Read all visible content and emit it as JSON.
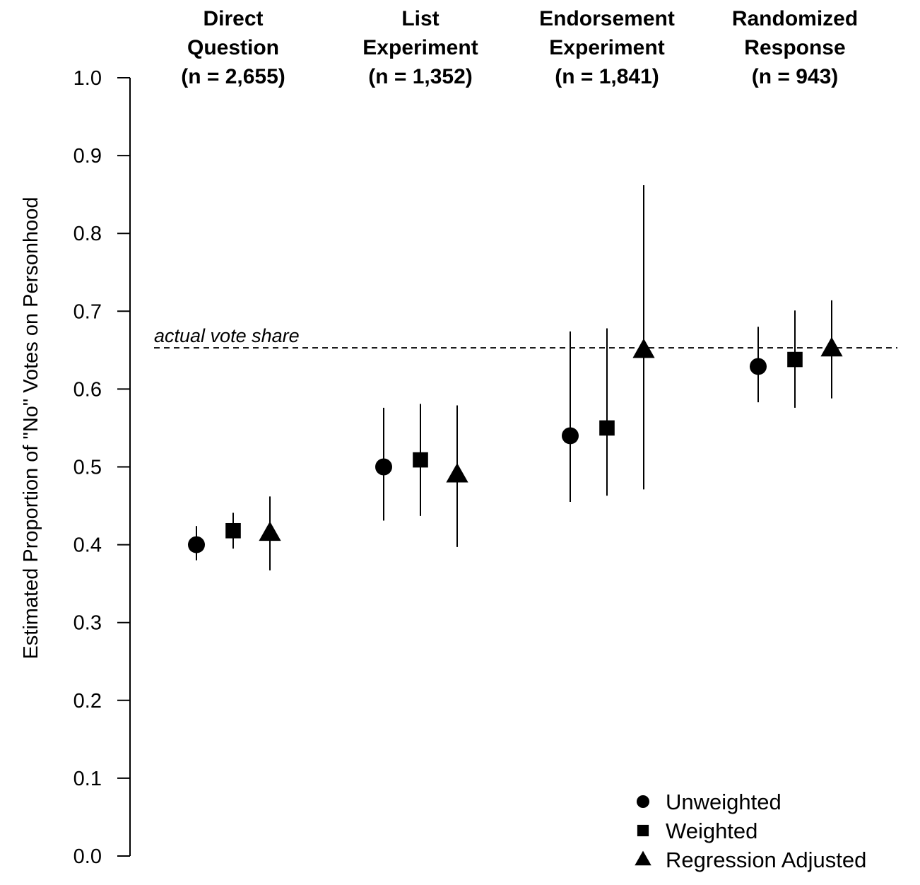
{
  "chart_data": {
    "type": "scatter",
    "ylabel": "Estimated Proportion of \"No\" Votes on Personhood",
    "ylim": [
      0,
      1
    ],
    "yticks": [
      "0.0",
      "0.1",
      "0.2",
      "0.3",
      "0.4",
      "0.5",
      "0.6",
      "0.7",
      "0.8",
      "0.9",
      "1.0"
    ],
    "grid": false,
    "reference_line": {
      "value": 0.653,
      "label": "actual vote share",
      "style": "dashed"
    },
    "groups": [
      {
        "lines": [
          "Direct",
          "Question",
          "(n = 2,655)"
        ]
      },
      {
        "lines": [
          "List",
          "Experiment",
          "(n = 1,352)"
        ]
      },
      {
        "lines": [
          "Endorsement",
          "Experiment",
          "(n = 1,841)"
        ]
      },
      {
        "lines": [
          "Randomized",
          "Response",
          "(n = 943)"
        ]
      }
    ],
    "series": [
      {
        "name": "Unweighted",
        "marker": "circle",
        "estimates": [
          0.4,
          0.5,
          0.54,
          0.629
        ],
        "lower": [
          0.38,
          0.431,
          0.455,
          0.583
        ],
        "upper": [
          0.424,
          0.576,
          0.674,
          0.68
        ]
      },
      {
        "name": "Weighted",
        "marker": "square",
        "estimates": [
          0.418,
          0.509,
          0.55,
          0.638
        ],
        "lower": [
          0.395,
          0.437,
          0.463,
          0.576
        ],
        "upper": [
          0.441,
          0.581,
          0.678,
          0.701
        ]
      },
      {
        "name": "Regression Adjusted",
        "marker": "triangle",
        "estimates": [
          0.415,
          0.49,
          0.65,
          0.652
        ],
        "lower": [
          0.367,
          0.397,
          0.471,
          0.588
        ],
        "upper": [
          0.462,
          0.579,
          0.862,
          0.714
        ]
      }
    ],
    "legend": {
      "placement": "bottom-right"
    }
  }
}
